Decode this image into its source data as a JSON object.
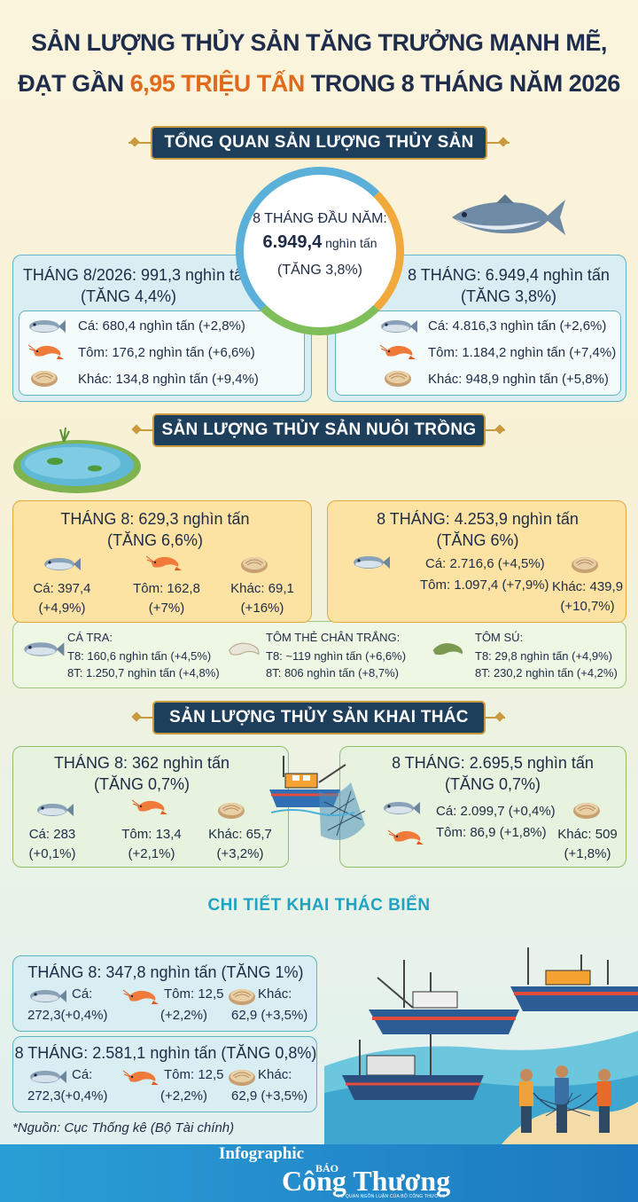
{
  "title": {
    "line1": "SẢN LƯỢNG THỦY SẢN TĂNG TRƯỞNG MẠNH MẼ,",
    "line2_pre": "ĐẠT GẦN ",
    "line2_hl": "6,95 TRIỆU TẤN",
    "line2_post": " TRONG 8 THÁNG NĂM 2026"
  },
  "sections": {
    "overview": "TỔNG QUAN SẢN LƯỢNG THỦY SẢN",
    "aquaculture": "SẢN LƯỢNG THỦY SẢN NUÔI TRỒNG",
    "capture": "SẢN LƯỢNG THỦY SẢN KHAI THÁC",
    "sea": "CHI TIẾT KHAI THÁC BIỂN"
  },
  "overview": {
    "center": {
      "label": "8 THÁNG ĐẦU NĂM:",
      "value": "6.949,4",
      "unit": " nghìn tấn",
      "growth": "(TĂNG 3,8%)"
    },
    "left": {
      "head1": "THÁNG 8/2026: 991,3 nghìn tấn",
      "head2": "(TĂNG 4,4%)",
      "fish": "Cá: 680,4 nghìn tấn (+2,8%)",
      "shrimp": "Tôm: 176,2 nghìn tấn (+6,6%)",
      "other": "Khác: 134,8 nghìn tấn (+9,4%)"
    },
    "right": {
      "head1": "8 THÁNG: 6.949,4 nghìn tấn",
      "head2": "(TĂNG 3,8%)",
      "fish": "Cá: 4.816,3 nghìn tấn (+2,6%)",
      "shrimp": "Tôm: 1.184,2 nghìn tấn (+7,4%)",
      "other": "Khác: 948,9 nghìn tấn (+5,8%)"
    }
  },
  "aquaculture": {
    "left": {
      "head1": "THÁNG 8: 629,3 nghìn tấn",
      "head2": "(TĂNG 6,6%)",
      "fish1": "Cá: 397,4",
      "fish2": "(+4,9%)",
      "shrimp1": "Tôm: 162,8",
      "shrimp2": "(+7%)",
      "other1": "Khác: 69,1",
      "other2": "(+16%)"
    },
    "right": {
      "head1": "8 THÁNG: 4.253,9 nghìn tấn",
      "head2": "(TĂNG 6%)",
      "fish": "Cá: 2.716,6 (+4,5%)",
      "shrimp": "Tôm: 1.097,4 (+7,9%)",
      "other1": "Khác: 439,9",
      "other2": "(+10,7%)"
    },
    "species": [
      {
        "name": "CÁ TRA:",
        "l1": "T8: 160,6 nghìn tấn (+4,5%)",
        "l2": "8T: 1.250,7 nghìn tấn (+4,8%)"
      },
      {
        "name": "TÔM THẺ CHÂN TRẮNG:",
        "l1": "T8: ~119 nghìn tấn (+6,6%)",
        "l2": "8T: 806 nghìn tấn (+8,7%)"
      },
      {
        "name": "TÔM SÚ:",
        "l1": "T8: 29,8 nghìn tấn (+4,9%)",
        "l2": "8T: 230,2 nghìn tấn (+4,2%)"
      }
    ]
  },
  "capture": {
    "left": {
      "head1": "THÁNG 8: 362 nghìn tấn",
      "head2": "(TĂNG 0,7%)",
      "fish1": "Cá: 283",
      "fish2": "(+0,1%)",
      "shrimp1": "Tôm: 13,4",
      "shrimp2": "(+2,1%)",
      "other1": "Khác: 65,7",
      "other2": "(+3,2%)"
    },
    "right": {
      "head1": "8 THÁNG: 2.695,5 nghìn tấn",
      "head2": "(TĂNG 0,7%)",
      "fish": "Cá: 2.099,7 (+0,4%)",
      "shrimp": "Tôm: 86,9 (+1,8%)",
      "other1": "Khác: 509",
      "other2": "(+1,8%)"
    }
  },
  "sea": {
    "month": {
      "head": "THÁNG 8: 347,8 nghìn tấn (TĂNG 1%)",
      "fish1": "Cá:",
      "fish2": "272,3(+0,4%)",
      "shrimp1": "Tôm: 12,5",
      "shrimp2": "(+2,2%)",
      "other1": "Khác:",
      "other2": "62,9 (+3,5%)"
    },
    "ytd": {
      "head": "8 THÁNG: 2.581,1 nghìn tấn (TĂNG 0,8%)",
      "fish1": "Cá:",
      "fish2": "272,3(+0,4%)",
      "shrimp1": "Tôm: 12,5",
      "shrimp2": "(+2,2%)",
      "other1": "Khác:",
      "other2": "62,9 (+3,5%)"
    }
  },
  "source": "*Nguồn: Cục Thống kê (Bộ Tài chính)",
  "brand": {
    "infographic": "Infographic",
    "bao": "BÁO",
    "name": "Công Thương",
    "tagline": "CƠ QUAN NGÔN LUẬN CỦA BỘ CÔNG THƯƠNG"
  },
  "colors": {
    "navy": "#1e3f5c",
    "gold": "#c99a3e",
    "orange": "#e06a1c",
    "teal": "#1ea3c2"
  }
}
